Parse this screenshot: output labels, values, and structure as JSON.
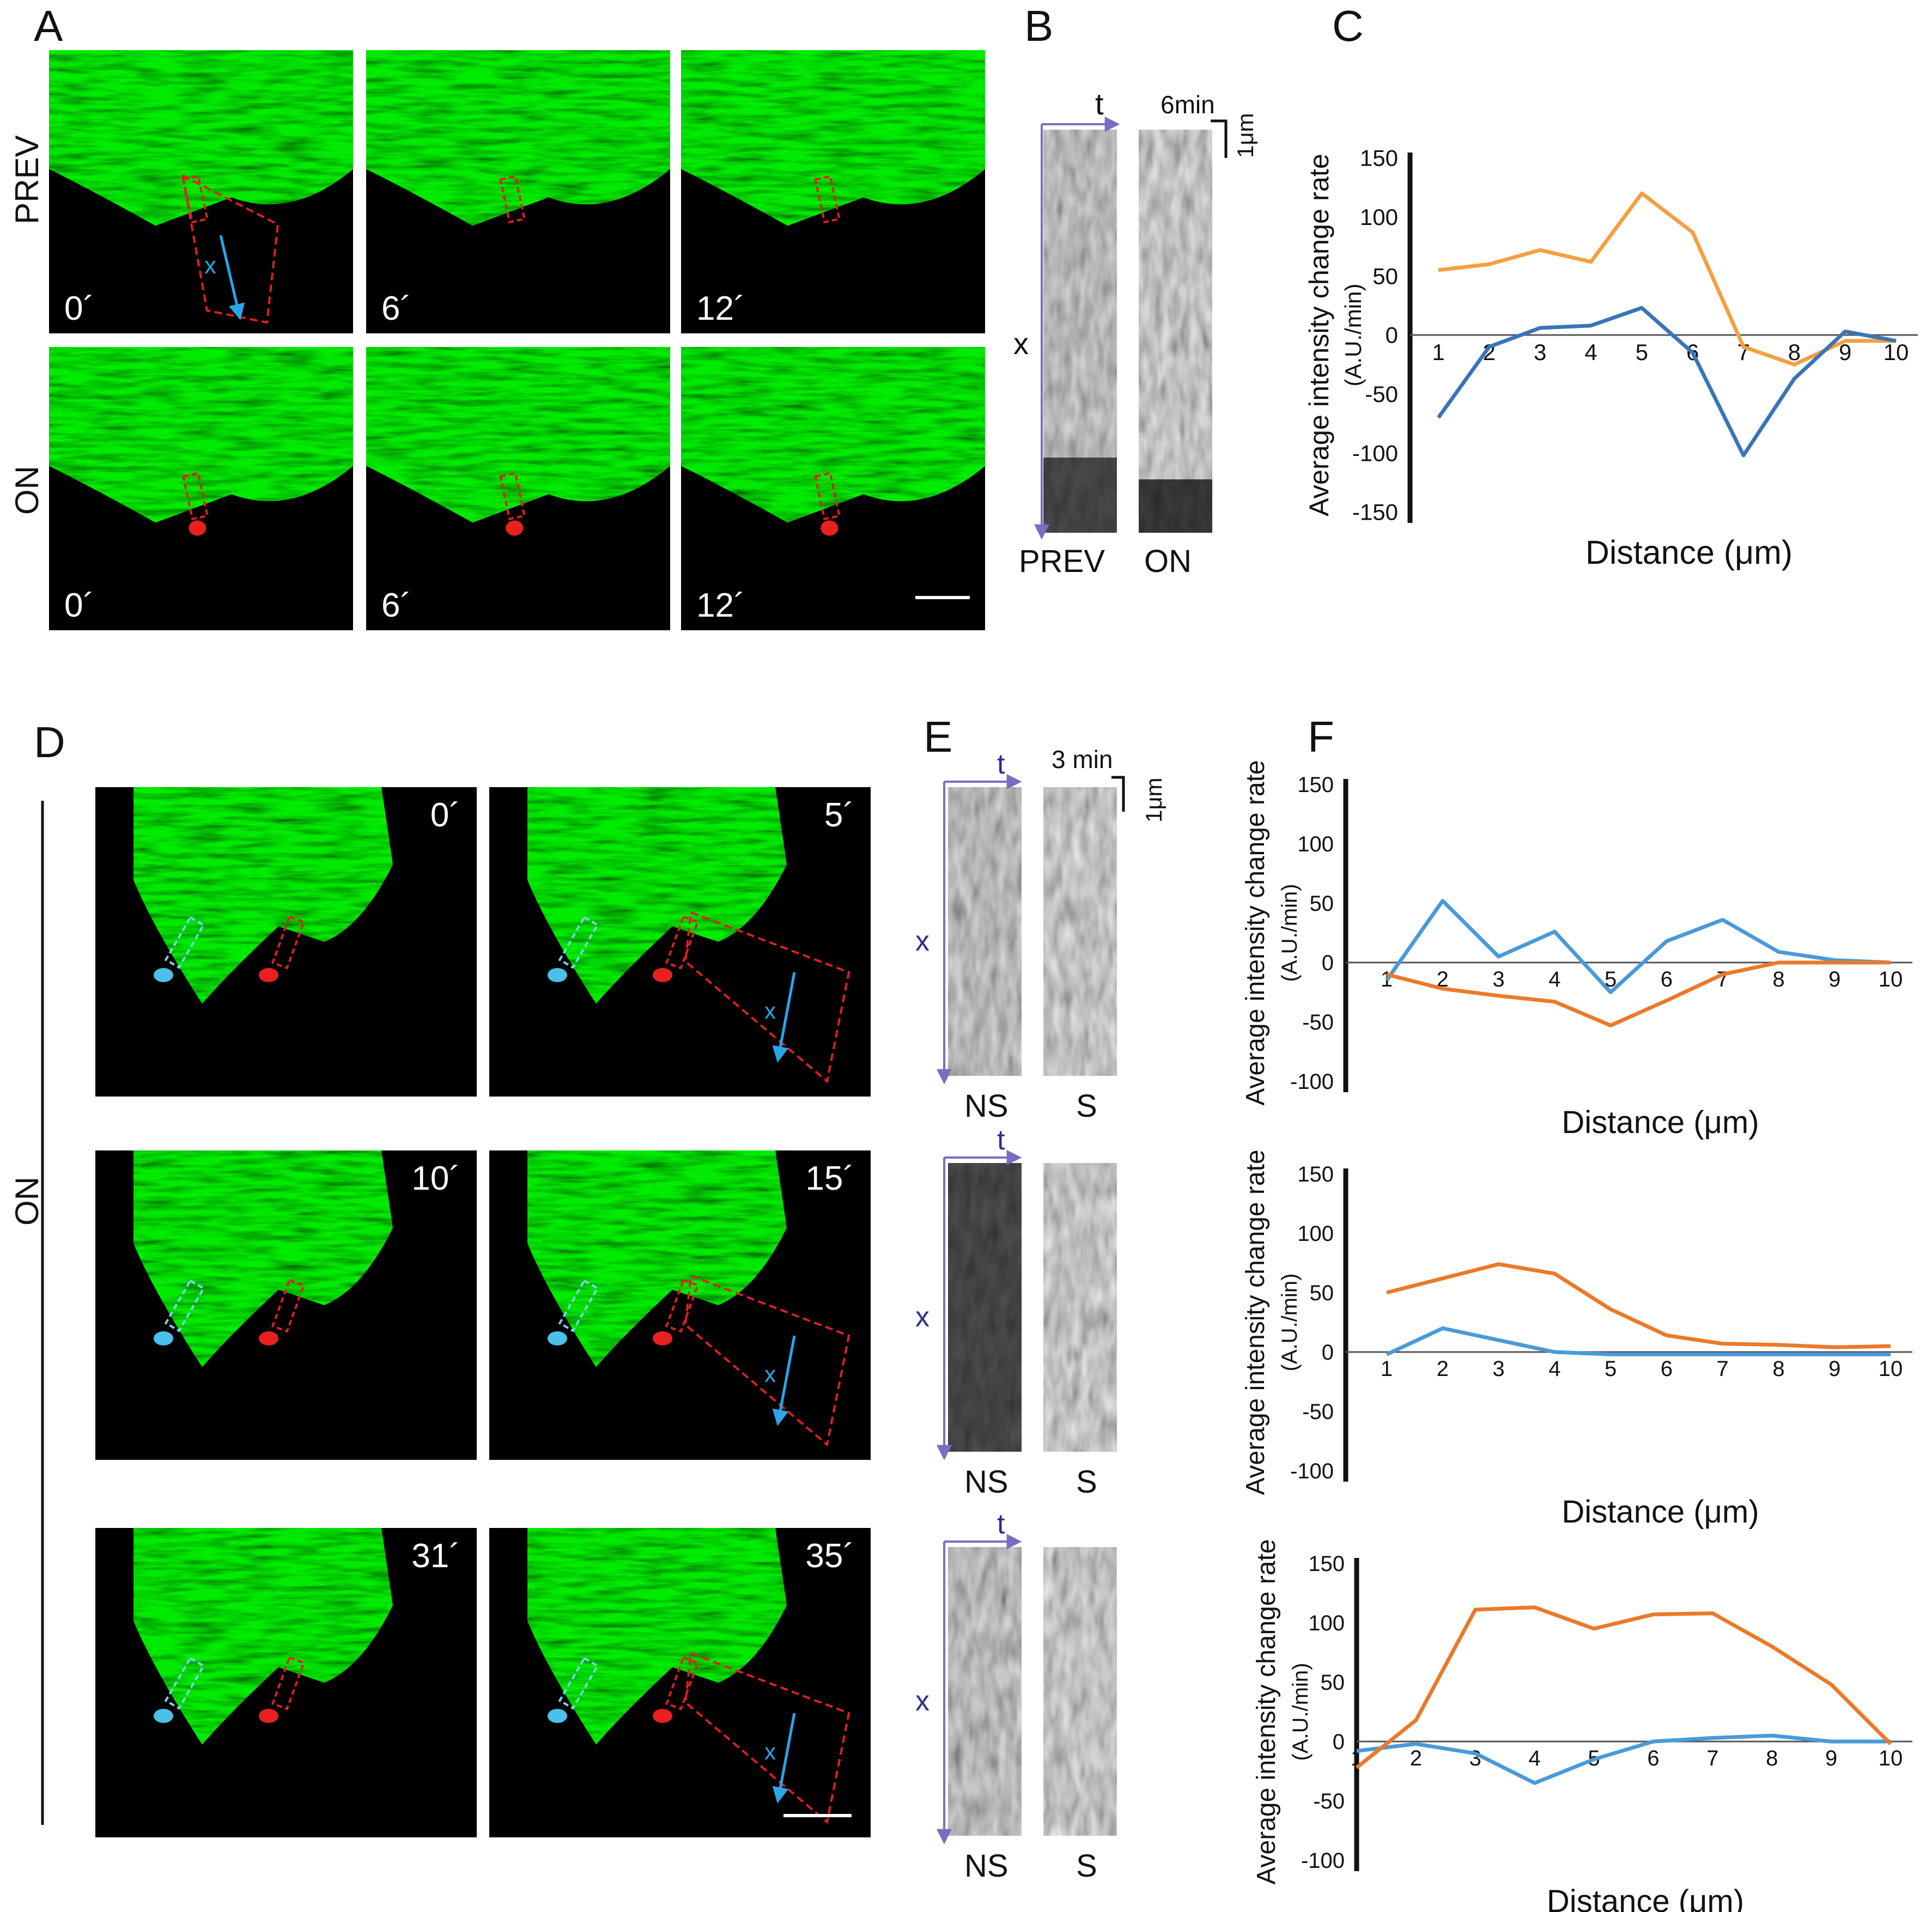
{
  "panels": {
    "A": {
      "label": "A",
      "rows": [
        {
          "label": "PREV",
          "times": [
            "0´",
            "6´",
            "12´"
          ]
        },
        {
          "label": "ON",
          "times": [
            "0´",
            "6´",
            "12´"
          ]
        }
      ],
      "axis_glyph": "x"
    },
    "B": {
      "label": "B",
      "t_label": "t",
      "x_label": "x",
      "time_scale": "6min",
      "space_scale": "1μm",
      "kymo_labels": [
        "PREV",
        "ON"
      ]
    },
    "C": {
      "label": "C"
    },
    "D": {
      "label": "D",
      "side_label": "ON",
      "times": [
        "0´",
        "5´",
        "10´",
        "15´",
        "31´",
        "35´"
      ],
      "axis_glyph": "x"
    },
    "E": {
      "label": "E",
      "t_label": "t",
      "x_label": "x",
      "time_scale": "3 min",
      "space_scale": "1μm",
      "kymo_labels": [
        "NS",
        "S"
      ]
    },
    "F": {
      "label": "F"
    }
  },
  "chart_data": [
    {
      "id": "C",
      "type": "line",
      "x": [
        1,
        2,
        3,
        4,
        5,
        6,
        7,
        8,
        9,
        10
      ],
      "series": [
        {
          "values": [
            55,
            60,
            72,
            62,
            120,
            87,
            -10,
            -25,
            -5,
            -5
          ],
          "color": "#f4a040"
        },
        {
          "values": [
            -70,
            -10,
            6,
            8,
            23,
            -15,
            -102,
            -37,
            3,
            -5
          ],
          "color": "#3a74b8"
        }
      ],
      "xlabel": "Distance (μm)",
      "ylabel": "Average intensity change rate",
      "ylabel2": "(A.U./min)",
      "ylim": [
        -150,
        150
      ],
      "yticks": [
        150,
        100,
        50,
        0,
        -50,
        -100,
        -150
      ]
    },
    {
      "id": "F1",
      "type": "line",
      "x": [
        1,
        2,
        3,
        4,
        5,
        6,
        7,
        8,
        9,
        10
      ],
      "series": [
        {
          "values": [
            -15,
            52,
            5,
            26,
            -25,
            18,
            36,
            9,
            2,
            0
          ],
          "color": "#4a9ad8"
        },
        {
          "values": [
            -10,
            -22,
            -28,
            -33,
            -53,
            -32,
            -10,
            0,
            0,
            0
          ],
          "color": "#ea7a2a"
        }
      ],
      "xlabel": "Distance (μm)",
      "ylabel": "Average intensity change rate",
      "ylabel2": "(A.U./min)",
      "ylim": [
        -100,
        150
      ],
      "yticks": [
        150,
        100,
        50,
        0,
        -50,
        -100
      ]
    },
    {
      "id": "F2",
      "type": "line",
      "x": [
        1,
        2,
        3,
        4,
        5,
        6,
        7,
        8,
        9,
        10
      ],
      "series": [
        {
          "values": [
            -2,
            20,
            10,
            0,
            -2,
            -2,
            -2,
            -2,
            -2,
            -2
          ],
          "color": "#4a9ad8"
        },
        {
          "values": [
            50,
            62,
            74,
            66,
            36,
            14,
            7,
            6,
            4,
            5
          ],
          "color": "#ea7a2a"
        }
      ],
      "xlabel": "Distance (μm)",
      "ylabel": "Average intensity change rate",
      "ylabel2": "(A.U./min)",
      "ylim": [
        -100,
        150
      ],
      "yticks": [
        150,
        100,
        50,
        0,
        -50,
        -100
      ]
    },
    {
      "id": "F3",
      "type": "line",
      "x": [
        1,
        2,
        3,
        4,
        5,
        6,
        7,
        8,
        9,
        10
      ],
      "series": [
        {
          "values": [
            -8,
            -2,
            -10,
            -35,
            -15,
            0,
            3,
            5,
            0,
            0
          ],
          "color": "#4a9ad8"
        },
        {
          "values": [
            -22,
            18,
            111,
            113,
            95,
            107,
            108,
            80,
            48,
            -2
          ],
          "color": "#ea7a2a"
        }
      ],
      "xlabel": "Distance (μm)",
      "ylabel": "Average intensity change rate",
      "ylabel2": "(A.U./min)",
      "ylim": [
        -100,
        150
      ],
      "yticks": [
        150,
        100,
        50,
        0,
        -50,
        -100
      ]
    }
  ]
}
